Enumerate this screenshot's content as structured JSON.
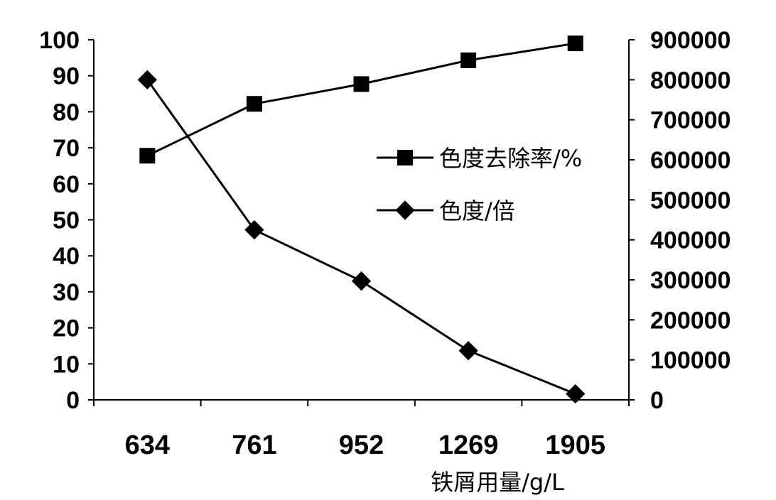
{
  "chart_data": {
    "type": "line",
    "categories": [
      "634",
      "761",
      "952",
      "1269",
      "1905"
    ],
    "xlabel": "铁屑用量/g/L",
    "y_left": {
      "ylim": [
        0,
        100
      ],
      "ticks": [
        0,
        10,
        20,
        30,
        40,
        50,
        60,
        70,
        80,
        90,
        100
      ]
    },
    "y_right": {
      "ylim": [
        0,
        900000
      ],
      "ticks": [
        0,
        100000,
        200000,
        300000,
        400000,
        500000,
        600000,
        700000,
        800000,
        900000
      ]
    },
    "series": [
      {
        "name": "色度去除率/%",
        "axis": "left",
        "marker": "square",
        "values": [
          67.8,
          82.2,
          87.7,
          94.3,
          99.0
        ]
      },
      {
        "name": "色度/倍",
        "axis": "right",
        "marker": "diamond",
        "values": [
          800000,
          425000,
          297000,
          123000,
          15000
        ]
      }
    ],
    "legend_placement": "center-right",
    "grid": false,
    "line_color": "#000000"
  }
}
